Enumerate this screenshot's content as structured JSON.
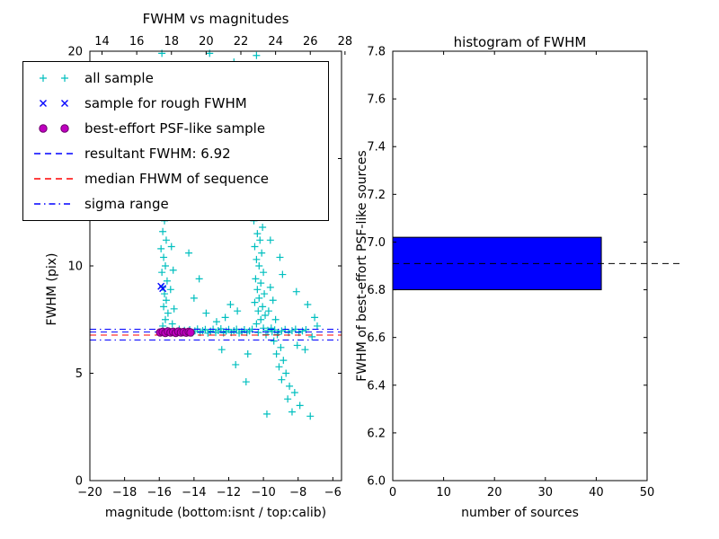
{
  "figure": {
    "background": "#ffffff"
  },
  "colors": {
    "all_sample": "#00bfbf",
    "rough_sample": "#0000ff",
    "psf_sample": "#bf00bf",
    "psf_edge": "#6a006a",
    "resultant_line": "#0000ff",
    "median_line": "#ff0000",
    "sigma_line": "#0000ff",
    "bar_fill": "#0000ff",
    "marker_line": "#000000"
  },
  "chart_data": [
    {
      "type": "scatter",
      "title": "FWHM vs magnitudes",
      "xlabel": "magnitude (bottom:isnt / top:calib)",
      "ylabel": "FWHM (pix)",
      "xlim": [
        -20,
        -5.5
      ],
      "ylim": [
        0,
        20
      ],
      "top_xlim": [
        13.3,
        27.8
      ],
      "xticks_bottom": {
        "values": [
          -20,
          -18,
          -16,
          -14,
          -12,
          -10,
          -8,
          -6
        ],
        "labels": [
          "−20",
          "−18",
          "−16",
          "−14",
          "−12",
          "−10",
          "−8",
          "−6"
        ]
      },
      "xticks_top": {
        "values": [
          14,
          16,
          18,
          20,
          22,
          24,
          26,
          28
        ],
        "labels": [
          "14",
          "16",
          "18",
          "20",
          "22",
          "24",
          "26",
          "28"
        ]
      },
      "yticks": {
        "values": [
          0,
          5,
          10,
          15,
          20
        ],
        "labels": [
          "0",
          "5",
          "10",
          "15",
          "20"
        ]
      },
      "legend": [
        {
          "label": "all sample",
          "swatch": "plus",
          "color": "#00bfbf"
        },
        {
          "label": "sample for rough FWHM",
          "swatch": "x",
          "color": "#0000ff"
        },
        {
          "label": "best-effort PSF-like sample",
          "swatch": "circle",
          "color": "#bf00bf",
          "edge": "#6a006a"
        },
        {
          "label": "resultant FWHM: 6.92",
          "swatch": "dash",
          "color": "#0000ff"
        },
        {
          "label": "median FHWM of sequence",
          "swatch": "dash",
          "color": "#ff0000"
        },
        {
          "label": "sigma range",
          "swatch": "dashdot",
          "color": "#0000ff"
        }
      ],
      "ref_lines": [
        {
          "name": "resultant FWHM",
          "style": "dashed",
          "color": "#0000ff",
          "value": 6.92
        },
        {
          "name": "median FHWM of sequence",
          "style": "dashed",
          "color": "#ff0000",
          "value": 6.78
        },
        {
          "name": "sigma range high",
          "style": "dashdot",
          "color": "#0000ff",
          "value": 7.05
        },
        {
          "name": "sigma range low",
          "style": "dashdot",
          "color": "#0000ff",
          "value": 6.55
        }
      ],
      "series": [
        {
          "name": "all sample",
          "marker": "plus",
          "color": "#00bfbf",
          "points": [
            [
              -15.85,
              19.9
            ],
            [
              -15.8,
              18.6
            ],
            [
              -15.9,
              17.4
            ],
            [
              -15.75,
              16.2
            ],
            [
              -15.85,
              15.1
            ],
            [
              -15.7,
              14.2
            ],
            [
              -15.8,
              13.4
            ],
            [
              -15.9,
              12.7
            ],
            [
              -15.7,
              12.1
            ],
            [
              -15.8,
              11.6
            ],
            [
              -15.6,
              11.2
            ],
            [
              -15.9,
              10.8
            ],
            [
              -15.75,
              10.4
            ],
            [
              -15.65,
              10.0
            ],
            [
              -15.85,
              9.7
            ],
            [
              -15.55,
              9.3
            ],
            [
              -15.8,
              9.0
            ],
            [
              -15.7,
              8.7
            ],
            [
              -15.6,
              8.4
            ],
            [
              -15.75,
              8.1
            ],
            [
              -15.5,
              7.8
            ],
            [
              -15.65,
              7.5
            ],
            [
              -15.8,
              7.2
            ],
            [
              -15.55,
              7.0
            ],
            [
              -15.3,
              10.9
            ],
            [
              -15.2,
              9.8
            ],
            [
              -15.35,
              8.9
            ],
            [
              -15.15,
              8.0
            ],
            [
              -15.25,
              7.3
            ],
            [
              -13.1,
              19.9
            ],
            [
              -11.7,
              19.5
            ],
            [
              -13.0,
              19.2
            ],
            [
              -10.4,
              19.8
            ],
            [
              -10.25,
              19.1
            ],
            [
              -10.5,
              18.5
            ],
            [
              -10.15,
              17.9
            ],
            [
              -10.45,
              17.3
            ],
            [
              -10.3,
              16.7
            ],
            [
              -10.55,
              16.1
            ],
            [
              -10.2,
              15.6
            ],
            [
              -10.4,
              15.1
            ],
            [
              -10.1,
              14.6
            ],
            [
              -10.5,
              14.1
            ],
            [
              -10.3,
              13.7
            ],
            [
              -10.15,
              13.3
            ],
            [
              -10.45,
              12.9
            ],
            [
              -10.25,
              12.5
            ],
            [
              -10.55,
              12.1
            ],
            [
              -10.05,
              11.8
            ],
            [
              -10.35,
              11.5
            ],
            [
              -10.2,
              11.2
            ],
            [
              -10.5,
              10.9
            ],
            [
              -10.1,
              10.6
            ],
            [
              -10.4,
              10.3
            ],
            [
              -10.25,
              10.0
            ],
            [
              -10.0,
              9.7
            ],
            [
              -10.45,
              9.4
            ],
            [
              -10.15,
              9.2
            ],
            [
              -10.35,
              8.9
            ],
            [
              -9.95,
              8.7
            ],
            [
              -10.25,
              8.5
            ],
            [
              -10.5,
              8.3
            ],
            [
              -10.05,
              8.1
            ],
            [
              -10.3,
              7.9
            ],
            [
              -9.9,
              7.7
            ],
            [
              -10.15,
              7.5
            ],
            [
              -10.4,
              7.3
            ],
            [
              -10.0,
              7.1
            ],
            [
              -10.3,
              6.9
            ],
            [
              -9.85,
              6.8
            ],
            [
              -10.0,
              18.0
            ],
            [
              -9.8,
              16.6
            ],
            [
              -9.95,
              15.0
            ],
            [
              -9.7,
              13.6
            ],
            [
              -9.9,
              12.3
            ],
            [
              -9.6,
              11.2
            ],
            [
              -9.05,
              10.4
            ],
            [
              -8.9,
              9.6
            ],
            [
              -9.6,
              9.0
            ],
            [
              -9.45,
              8.4
            ],
            [
              -9.7,
              7.9
            ],
            [
              -9.3,
              7.5
            ],
            [
              -9.55,
              7.1
            ],
            [
              -9.2,
              6.8
            ],
            [
              -9.4,
              6.5
            ],
            [
              -9.0,
              6.2
            ],
            [
              -9.25,
              5.9
            ],
            [
              -8.85,
              5.6
            ],
            [
              -9.1,
              5.3
            ],
            [
              -8.7,
              5.0
            ],
            [
              -8.95,
              4.7
            ],
            [
              -8.5,
              4.4
            ],
            [
              -8.2,
              4.1
            ],
            [
              -8.6,
              3.8
            ],
            [
              -7.9,
              3.5
            ],
            [
              -8.35,
              3.2
            ],
            [
              -15.0,
              6.95
            ],
            [
              -14.85,
              7.05
            ],
            [
              -14.7,
              6.9
            ],
            [
              -14.55,
              7.0
            ],
            [
              -14.4,
              6.92
            ],
            [
              -14.25,
              7.03
            ],
            [
              -14.1,
              6.88
            ],
            [
              -13.95,
              6.97
            ],
            [
              -13.8,
              7.06
            ],
            [
              -13.65,
              6.9
            ],
            [
              -13.5,
              6.98
            ],
            [
              -13.35,
              7.04
            ],
            [
              -13.2,
              6.87
            ],
            [
              -13.05,
              6.96
            ],
            [
              -12.9,
              7.05
            ],
            [
              -12.75,
              6.9
            ],
            [
              -12.6,
              6.99
            ],
            [
              -12.45,
              7.07
            ],
            [
              -12.3,
              6.88
            ],
            [
              -12.15,
              6.96
            ],
            [
              -12.0,
              7.04
            ],
            [
              -11.85,
              6.9
            ],
            [
              -11.7,
              6.98
            ],
            [
              -11.55,
              7.05
            ],
            [
              -11.4,
              6.87
            ],
            [
              -11.25,
              6.95
            ],
            [
              -11.1,
              7.03
            ],
            [
              -10.95,
              6.9
            ],
            [
              -10.8,
              6.97
            ],
            [
              -10.65,
              7.05
            ],
            [
              -9.75,
              7.0
            ],
            [
              -9.5,
              6.93
            ],
            [
              -9.35,
              7.02
            ],
            [
              -9.15,
              6.9
            ],
            [
              -8.95,
              6.97
            ],
            [
              -8.75,
              7.04
            ],
            [
              -8.55,
              6.9
            ],
            [
              -8.35,
              6.98
            ],
            [
              -8.15,
              7.05
            ],
            [
              -7.95,
              6.9
            ],
            [
              -7.75,
              6.97
            ],
            [
              -7.55,
              7.03
            ],
            [
              -9.8,
              3.1
            ],
            [
              -7.3,
              3.0
            ],
            [
              -11.0,
              4.6
            ],
            [
              -11.6,
              5.4
            ],
            [
              -12.4,
              6.1
            ],
            [
              -10.9,
              5.9
            ],
            [
              -8.05,
              6.3
            ],
            [
              -7.6,
              6.1
            ],
            [
              -7.2,
              6.7
            ],
            [
              -6.9,
              7.2
            ],
            [
              -7.05,
              7.6
            ],
            [
              -7.45,
              8.2
            ],
            [
              -8.1,
              8.8
            ],
            [
              -11.9,
              8.2
            ],
            [
              -12.2,
              7.6
            ],
            [
              -11.5,
              7.9
            ],
            [
              -12.7,
              7.4
            ],
            [
              -13.3,
              7.8
            ],
            [
              -14.0,
              8.5
            ],
            [
              -13.7,
              9.4
            ],
            [
              -14.3,
              10.6
            ]
          ]
        },
        {
          "name": "sample for rough FWHM",
          "marker": "x",
          "color": "#0000ff",
          "points": [
            [
              -15.9,
              9.05
            ],
            [
              -15.8,
              8.95
            ]
          ]
        },
        {
          "name": "best-effort PSF-like sample",
          "marker": "circle",
          "color": "#bf00bf",
          "edge": "#6a006a",
          "points": [
            [
              -15.95,
              6.9
            ],
            [
              -15.8,
              6.93
            ],
            [
              -15.65,
              6.88
            ],
            [
              -15.5,
              6.95
            ],
            [
              -15.35,
              6.9
            ],
            [
              -15.2,
              6.93
            ],
            [
              -15.05,
              6.88
            ],
            [
              -14.9,
              6.94
            ],
            [
              -14.75,
              6.9
            ],
            [
              -14.6,
              6.92
            ],
            [
              -14.45,
              6.89
            ],
            [
              -14.3,
              6.93
            ],
            [
              -14.2,
              6.9
            ]
          ]
        }
      ]
    },
    {
      "type": "bar",
      "orientation": "horizontal",
      "title": "histogram of FWHM",
      "xlabel": "number of sources",
      "ylabel": "FWHM of best-effort PSF-like sources",
      "xlim": [
        0,
        50
      ],
      "ylim": [
        6.0,
        7.8
      ],
      "xticks": {
        "values": [
          0,
          10,
          20,
          30,
          40,
          50
        ],
        "labels": [
          "0",
          "10",
          "20",
          "30",
          "40",
          "50"
        ]
      },
      "yticks": {
        "values": [
          6.0,
          6.2,
          6.4,
          6.6,
          6.8,
          7.0,
          7.2,
          7.4,
          7.6,
          7.8
        ],
        "labels": [
          "6.0",
          "6.2",
          "6.4",
          "6.6",
          "6.8",
          "7.0",
          "7.2",
          "7.4",
          "7.6",
          "7.8"
        ]
      },
      "bar_color": "#0000ff",
      "bars": [
        {
          "y_from": 6.8,
          "y_to": 7.02,
          "value": 41
        }
      ],
      "marker_line": {
        "value": 6.91,
        "color": "#000000",
        "style": "dashed"
      }
    }
  ]
}
